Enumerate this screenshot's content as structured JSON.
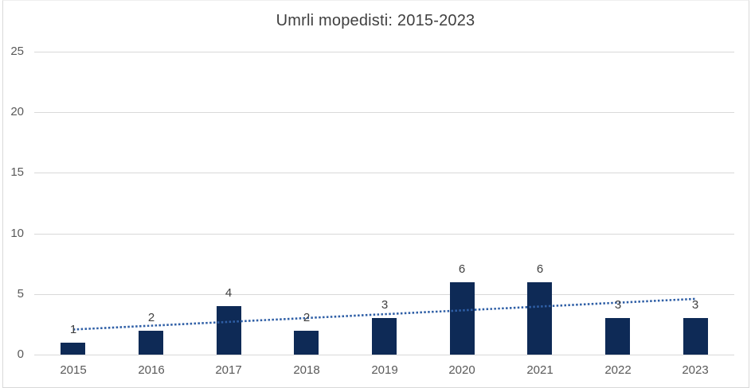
{
  "chart_data": {
    "type": "bar",
    "title": "Umrli mopedisti: 2015-2023",
    "categories": [
      "2015",
      "2016",
      "2017",
      "2018",
      "2019",
      "2020",
      "2021",
      "2022",
      "2023"
    ],
    "values": [
      1,
      2,
      4,
      2,
      3,
      6,
      6,
      3,
      3
    ],
    "data_labels": [
      "1",
      "2",
      "4",
      "2",
      "3",
      "6",
      "6",
      "3",
      "3"
    ],
    "xlabel": "",
    "ylabel": "",
    "ylim": [
      0,
      25
    ],
    "yticks": [
      0,
      5,
      10,
      15,
      20,
      25
    ],
    "grid": "horizontal",
    "legend": "none",
    "trendline": {
      "type": "linear",
      "style": "dotted",
      "start_value": 2.07,
      "end_value": 4.6
    },
    "colors": {
      "bar": "#0E2A56",
      "trendline": "#2F5FA6",
      "gridline": "#D9D9D9",
      "axis_line": "#D9D9D9",
      "title_text": "#404040",
      "tick_text": "#595959",
      "data_label_text": "#404040",
      "background": "#FFFFFF"
    }
  }
}
